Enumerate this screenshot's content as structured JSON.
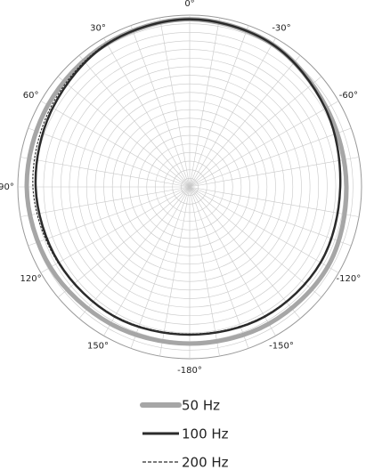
{
  "chart_data": {
    "type": "polar",
    "theta": [
      0,
      30,
      60,
      90,
      120,
      150,
      180,
      -150,
      -120,
      -90,
      -60,
      -30
    ],
    "rlim": [
      -25,
      0
    ],
    "thetaticks": [
      {
        "value": 0,
        "label": "0°"
      },
      {
        "value": 30,
        "label": "30°"
      },
      {
        "value": -30,
        "label": "-30°"
      },
      {
        "value": 60,
        "label": "60°"
      },
      {
        "value": -60,
        "label": "-60°"
      },
      {
        "value": 90,
        "label": "90°"
      },
      {
        "value": 120,
        "label": "120°"
      },
      {
        "value": -120,
        "label": "-120°"
      },
      {
        "value": 150,
        "label": "150°"
      },
      {
        "value": -150,
        "label": "-150°"
      },
      {
        "value": 180,
        "label": "-180°"
      }
    ],
    "series": [
      {
        "name": "50 Hz",
        "color": "#a6a6a6",
        "style": "solid",
        "values": [
          -0.6,
          -0.9,
          -1.2,
          -1.3,
          -1.6,
          -2.0,
          -2.2,
          -2.0,
          -1.8,
          -2.2,
          -2.0,
          -1.0
        ]
      },
      {
        "name": "100 Hz",
        "color": "#2b2b2b",
        "style": "solid",
        "values": [
          -0.6,
          -1.0,
          -2.0,
          -2.6,
          -3.0,
          -3.2,
          -3.5,
          -3.2,
          -3.0,
          -3.1,
          -2.2,
          -1.0
        ]
      },
      {
        "name": "200 Hz",
        "color": "#2b2b2b",
        "style": "dashed",
        "values": [
          -0.6,
          -0.9,
          -1.7,
          -2.2,
          -2.9,
          -3.3,
          -3.6,
          -3.3,
          -3.0,
          -3.1,
          -2.2,
          -1.0
        ]
      }
    ]
  }
}
